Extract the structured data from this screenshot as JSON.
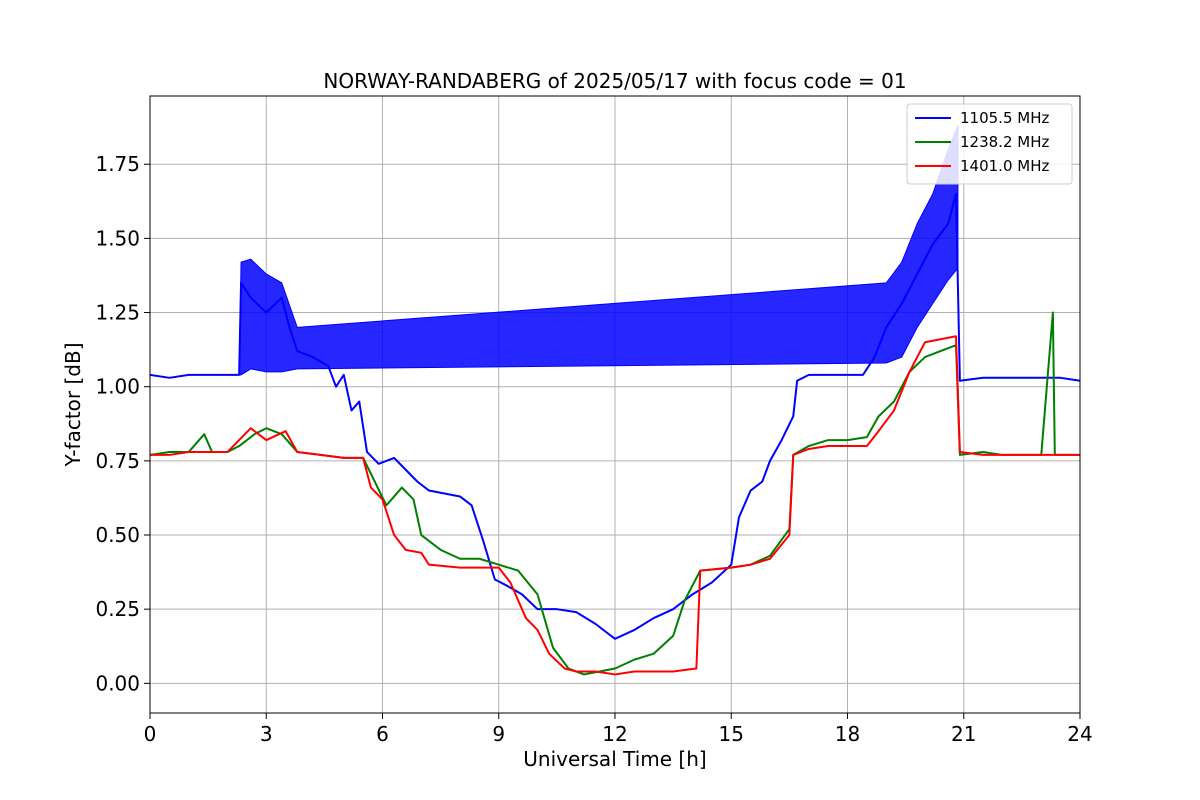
{
  "chart_data": {
    "type": "line",
    "title": "NORWAY-RANDABERG of 2025/05/17 with focus code = 01",
    "xlabel": "Universal Time [h]",
    "ylabel": "Y-factor [dB]",
    "xlim": [
      0,
      24
    ],
    "ylim": [
      -0.1,
      1.98
    ],
    "xticks": [
      0,
      3,
      6,
      9,
      12,
      15,
      18,
      21,
      24
    ],
    "yticks": [
      "0.00",
      "0.25",
      "0.50",
      "0.75",
      "1.00",
      "1.25",
      "1.50",
      "1.75"
    ],
    "grid": true,
    "legend": "top-right",
    "series": [
      {
        "name": "1105.5 MHz",
        "color": "#0000ff",
        "points": [
          [
            0,
            1.04
          ],
          [
            0.5,
            1.03
          ],
          [
            1.0,
            1.04
          ],
          [
            1.5,
            1.04
          ],
          [
            2.0,
            1.04
          ],
          [
            2.3,
            1.04
          ],
          [
            2.35,
            1.35
          ],
          [
            2.6,
            1.3
          ],
          [
            3.0,
            1.25
          ],
          [
            3.4,
            1.3
          ],
          [
            3.6,
            1.2
          ],
          [
            3.8,
            1.12
          ],
          [
            4.2,
            1.1
          ],
          [
            4.6,
            1.07
          ],
          [
            4.8,
            1.0
          ],
          [
            5.0,
            1.04
          ],
          [
            5.2,
            0.92
          ],
          [
            5.4,
            0.95
          ],
          [
            5.6,
            0.78
          ],
          [
            5.9,
            0.74
          ],
          [
            6.3,
            0.76
          ],
          [
            6.6,
            0.72
          ],
          [
            6.9,
            0.68
          ],
          [
            7.2,
            0.65
          ],
          [
            7.6,
            0.64
          ],
          [
            8.0,
            0.63
          ],
          [
            8.3,
            0.6
          ],
          [
            8.6,
            0.48
          ],
          [
            8.9,
            0.35
          ],
          [
            9.2,
            0.33
          ],
          [
            9.6,
            0.3
          ],
          [
            10.0,
            0.25
          ],
          [
            10.5,
            0.25
          ],
          [
            11.0,
            0.24
          ],
          [
            11.5,
            0.2
          ],
          [
            12.0,
            0.15
          ],
          [
            12.5,
            0.18
          ],
          [
            13.0,
            0.22
          ],
          [
            13.5,
            0.25
          ],
          [
            14.0,
            0.3
          ],
          [
            14.5,
            0.34
          ],
          [
            15.0,
            0.4
          ],
          [
            15.2,
            0.56
          ],
          [
            15.5,
            0.65
          ],
          [
            15.8,
            0.68
          ],
          [
            16.0,
            0.75
          ],
          [
            16.3,
            0.82
          ],
          [
            16.6,
            0.9
          ],
          [
            16.7,
            1.02
          ],
          [
            17.0,
            1.04
          ],
          [
            17.5,
            1.04
          ],
          [
            18.0,
            1.04
          ],
          [
            18.4,
            1.04
          ],
          [
            18.7,
            1.1
          ],
          [
            19.0,
            1.2
          ],
          [
            19.4,
            1.28
          ],
          [
            19.8,
            1.38
          ],
          [
            20.2,
            1.48
          ],
          [
            20.6,
            1.55
          ],
          [
            20.8,
            1.65
          ],
          [
            20.9,
            1.02
          ],
          [
            21.5,
            1.03
          ],
          [
            22.0,
            1.03
          ],
          [
            22.5,
            1.03
          ],
          [
            23.0,
            1.03
          ],
          [
            23.5,
            1.03
          ],
          [
            24,
            1.02
          ]
        ],
        "envelope": [
          [
            2.3,
            1.04,
            1.04
          ],
          [
            2.35,
            1.04,
            1.42
          ],
          [
            2.6,
            1.06,
            1.43
          ],
          [
            3.0,
            1.05,
            1.38
          ],
          [
            3.4,
            1.05,
            1.35
          ],
          [
            3.8,
            1.06,
            1.2
          ],
          [
            19.0,
            1.08,
            1.35
          ],
          [
            19.4,
            1.1,
            1.42
          ],
          [
            19.8,
            1.2,
            1.55
          ],
          [
            20.2,
            1.28,
            1.65
          ],
          [
            20.6,
            1.36,
            1.8
          ],
          [
            20.85,
            1.4,
            1.88
          ]
        ]
      },
      {
        "name": "1238.2 MHz",
        "color": "#008000",
        "points": [
          [
            0,
            0.77
          ],
          [
            0.5,
            0.78
          ],
          [
            1.0,
            0.78
          ],
          [
            1.4,
            0.84
          ],
          [
            1.6,
            0.78
          ],
          [
            2.0,
            0.78
          ],
          [
            2.3,
            0.8
          ],
          [
            2.7,
            0.84
          ],
          [
            3.0,
            0.86
          ],
          [
            3.4,
            0.84
          ],
          [
            3.8,
            0.78
          ],
          [
            4.4,
            0.77
          ],
          [
            5.0,
            0.76
          ],
          [
            5.5,
            0.76
          ],
          [
            5.8,
            0.68
          ],
          [
            6.1,
            0.6
          ],
          [
            6.5,
            0.66
          ],
          [
            6.8,
            0.62
          ],
          [
            7.0,
            0.5
          ],
          [
            7.5,
            0.45
          ],
          [
            8.0,
            0.42
          ],
          [
            8.5,
            0.42
          ],
          [
            9.0,
            0.4
          ],
          [
            9.5,
            0.38
          ],
          [
            10.0,
            0.3
          ],
          [
            10.4,
            0.12
          ],
          [
            10.8,
            0.05
          ],
          [
            11.2,
            0.03
          ],
          [
            11.6,
            0.04
          ],
          [
            12.0,
            0.05
          ],
          [
            12.5,
            0.08
          ],
          [
            13.0,
            0.1
          ],
          [
            13.5,
            0.16
          ],
          [
            13.8,
            0.28
          ],
          [
            14.2,
            0.38
          ],
          [
            15.0,
            0.39
          ],
          [
            15.5,
            0.4
          ],
          [
            16.0,
            0.43
          ],
          [
            16.5,
            0.52
          ],
          [
            16.6,
            0.77
          ],
          [
            17.0,
            0.8
          ],
          [
            17.5,
            0.82
          ],
          [
            18.0,
            0.82
          ],
          [
            18.5,
            0.83
          ],
          [
            18.8,
            0.9
          ],
          [
            19.2,
            0.95
          ],
          [
            19.6,
            1.05
          ],
          [
            20.0,
            1.1
          ],
          [
            20.4,
            1.12
          ],
          [
            20.8,
            1.14
          ],
          [
            20.9,
            0.77
          ],
          [
            21.5,
            0.78
          ],
          [
            22.0,
            0.77
          ],
          [
            22.5,
            0.77
          ],
          [
            23.0,
            0.77
          ],
          [
            23.3,
            1.25
          ],
          [
            23.35,
            0.77
          ],
          [
            24,
            0.77
          ]
        ]
      },
      {
        "name": "1401.0 MHz",
        "color": "#ff0000",
        "points": [
          [
            0,
            0.77
          ],
          [
            0.5,
            0.77
          ],
          [
            1.0,
            0.78
          ],
          [
            1.5,
            0.78
          ],
          [
            2.0,
            0.78
          ],
          [
            2.3,
            0.82
          ],
          [
            2.6,
            0.86
          ],
          [
            3.0,
            0.82
          ],
          [
            3.5,
            0.85
          ],
          [
            3.8,
            0.78
          ],
          [
            4.4,
            0.77
          ],
          [
            5.0,
            0.76
          ],
          [
            5.5,
            0.76
          ],
          [
            5.7,
            0.66
          ],
          [
            6.0,
            0.62
          ],
          [
            6.3,
            0.5
          ],
          [
            6.6,
            0.45
          ],
          [
            7.0,
            0.44
          ],
          [
            7.2,
            0.4
          ],
          [
            8.0,
            0.39
          ],
          [
            8.5,
            0.39
          ],
          [
            9.0,
            0.39
          ],
          [
            9.3,
            0.34
          ],
          [
            9.7,
            0.22
          ],
          [
            10.0,
            0.18
          ],
          [
            10.3,
            0.1
          ],
          [
            10.7,
            0.05
          ],
          [
            11.0,
            0.04
          ],
          [
            11.5,
            0.04
          ],
          [
            12.0,
            0.03
          ],
          [
            12.5,
            0.04
          ],
          [
            13.0,
            0.04
          ],
          [
            13.5,
            0.04
          ],
          [
            14.1,
            0.05
          ],
          [
            14.2,
            0.38
          ],
          [
            15.0,
            0.39
          ],
          [
            15.5,
            0.4
          ],
          [
            16.0,
            0.42
          ],
          [
            16.5,
            0.5
          ],
          [
            16.6,
            0.77
          ],
          [
            17.0,
            0.79
          ],
          [
            17.5,
            0.8
          ],
          [
            18.0,
            0.8
          ],
          [
            18.5,
            0.8
          ],
          [
            18.8,
            0.85
          ],
          [
            19.2,
            0.92
          ],
          [
            19.6,
            1.05
          ],
          [
            20.0,
            1.15
          ],
          [
            20.4,
            1.16
          ],
          [
            20.8,
            1.17
          ],
          [
            20.9,
            0.78
          ],
          [
            21.5,
            0.77
          ],
          [
            22.0,
            0.77
          ],
          [
            23.0,
            0.77
          ],
          [
            24,
            0.77
          ]
        ]
      }
    ]
  }
}
